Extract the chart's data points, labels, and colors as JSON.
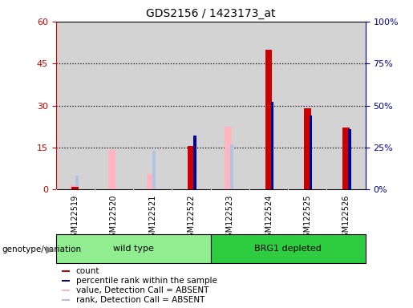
{
  "title": "GDS2156 / 1423173_at",
  "samples": [
    "GSM122519",
    "GSM122520",
    "GSM122521",
    "GSM122522",
    "GSM122523",
    "GSM122524",
    "GSM122525",
    "GSM122526"
  ],
  "groups": [
    {
      "label": "wild type",
      "indices": [
        0,
        1,
        2,
        3
      ],
      "color": "#90ee90"
    },
    {
      "label": "BRG1 depleted",
      "indices": [
        4,
        5,
        6,
        7
      ],
      "color": "#2ecc40"
    }
  ],
  "count": [
    1.0,
    0.0,
    0.0,
    15.5,
    0.0,
    50.0,
    29.0,
    22.0
  ],
  "percentile_rank_pct": [
    null,
    null,
    null,
    32.0,
    null,
    52.0,
    44.0,
    36.0
  ],
  "value_absent": [
    1.5,
    14.0,
    5.5,
    null,
    22.5,
    null,
    null,
    null
  ],
  "rank_absent_pct": [
    8.0,
    null,
    23.0,
    null,
    27.0,
    null,
    null,
    null
  ],
  "ylim_left": [
    0,
    60
  ],
  "ylim_right": [
    0,
    100
  ],
  "yticks_left": [
    0,
    15,
    30,
    45,
    60
  ],
  "yticks_right": [
    0,
    25,
    50,
    75,
    100
  ],
  "color_count": "#cc0000",
  "color_percentile": "#000099",
  "color_value_absent": "#ffb6c1",
  "color_rank_absent": "#b0c4e8",
  "bg_plot": "#d3d3d3",
  "legend_items": [
    {
      "color": "#cc0000",
      "label": "count"
    },
    {
      "color": "#000099",
      "label": "percentile rank within the sample"
    },
    {
      "color": "#ffb6c1",
      "label": "value, Detection Call = ABSENT"
    },
    {
      "color": "#b0c4e8",
      "label": "rank, Detection Call = ABSENT"
    }
  ]
}
